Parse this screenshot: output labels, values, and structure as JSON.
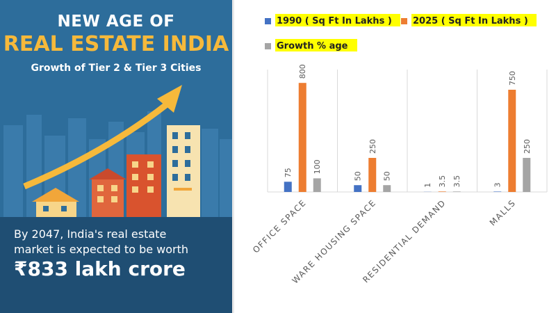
{
  "infographic": {
    "title_line1": "NEW AGE OF",
    "title_line2": "REAL ESTATE INDIA",
    "subtitle": "Growth of Tier 2 & Tier 3 Cities",
    "footer_line1": "By 2047, India's real estate",
    "footer_line2": "market is expected to be worth",
    "footer_value": "₹833 lakh crore"
  },
  "colors": {
    "panel_blue": "#2d6d9b",
    "panel_dark": "#1f4e73",
    "accent_yellow": "#f6b93b",
    "highlight": "#ffff00"
  },
  "chart_data": {
    "type": "bar",
    "categories": [
      "OFFICE SPACE",
      "WARE HOUSING SPACE",
      "RESIDENTIAL DEMAND",
      "MALLS"
    ],
    "series": [
      {
        "name": "1990 ( Sq Ft In Lakhs )",
        "color": "#4472c4",
        "values": [
          75,
          50,
          1,
          3
        ]
      },
      {
        "name": "2025 ( Sq Ft In Lakhs )",
        "color": "#ed7d31",
        "values": [
          800,
          250,
          3.5,
          750
        ]
      },
      {
        "name": "Growth % age",
        "color": "#a5a5a5",
        "values": [
          100,
          50,
          3.5,
          250
        ]
      }
    ],
    "ylim": [
      0,
      1000
    ],
    "grid": false,
    "legend": "top"
  }
}
